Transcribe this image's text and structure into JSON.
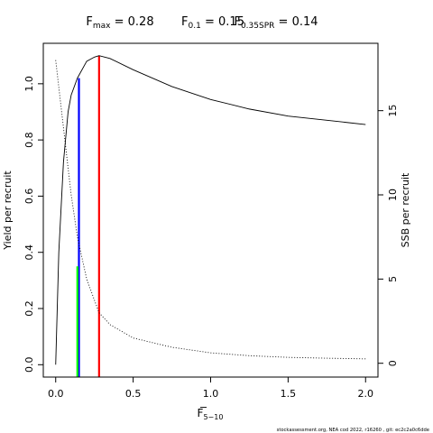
{
  "chart_data": {
    "type": "line",
    "title": {
      "fmax": {
        "symbol": "F",
        "sub": "max",
        "value": "0.28"
      },
      "f01": {
        "symbol": "F",
        "sub": "0.1",
        "value": "0.15"
      },
      "f035": {
        "symbol": "F",
        "sub": "0.35SPR",
        "value": "0.14"
      }
    },
    "xlabel": {
      "symbol": "F",
      "sub": "5−10"
    },
    "ylabel_left": "Yield per recruit",
    "ylabel_right": "SSB per recruit",
    "xlim": [
      -0.08,
      2.08
    ],
    "ylim_left": [
      -0.044,
      1.144
    ],
    "ylim_right": [
      -0.82,
      19.0
    ],
    "x_ticks": [
      0,
      0.5,
      1,
      1.5,
      2
    ],
    "x_tick_labels": [
      "0.0",
      "0.5",
      "1.0",
      "1.5",
      "2.0"
    ],
    "y_left_ticks": [
      0,
      0.2,
      0.4,
      0.6,
      0.8,
      1.0
    ],
    "y_left_tick_labels": [
      "0.0",
      "0.2",
      "0.4",
      "0.6",
      "0.8",
      "1.0"
    ],
    "y_right_ticks": [
      0,
      5,
      10,
      15
    ],
    "y_right_tick_labels": [
      "0",
      "5",
      "10",
      "15"
    ],
    "series": [
      {
        "axis": "left",
        "style": "solid",
        "color": "#000000",
        "x": [
          0,
          0.02,
          0.05,
          0.08,
          0.1,
          0.14,
          0.15,
          0.2,
          0.25,
          0.28,
          0.35,
          0.5,
          0.75,
          1.0,
          1.25,
          1.5,
          1.75,
          2.0
        ],
        "y": [
          0.0,
          0.4,
          0.72,
          0.9,
          0.96,
          1.02,
          1.03,
          1.08,
          1.095,
          1.1,
          1.09,
          1.05,
          0.99,
          0.944,
          0.91,
          0.885,
          0.87,
          0.855
        ]
      },
      {
        "axis": "right",
        "style": "dotted",
        "color": "#000000",
        "x": [
          0,
          0.05,
          0.1,
          0.14,
          0.2,
          0.28,
          0.35,
          0.5,
          0.75,
          1.0,
          1.25,
          1.5,
          1.75,
          2.0
        ],
        "y": [
          18.0,
          14.0,
          10.0,
          7.5,
          5.0,
          3.0,
          2.3,
          1.5,
          0.95,
          0.62,
          0.45,
          0.35,
          0.3,
          0.26
        ]
      }
    ],
    "reference_lines": [
      {
        "x": 0.28,
        "y_top": 1.1,
        "color": "#ff0000"
      },
      {
        "x": 0.15,
        "y_top": 1.02,
        "color": "#0000ff"
      },
      {
        "x": 0.14,
        "y_top": 0.35,
        "color": "#00ff00"
      }
    ],
    "footnote": "stockassessment.org, NEA cod 2022, r16260 , git: ec2c2a0c6dde"
  }
}
